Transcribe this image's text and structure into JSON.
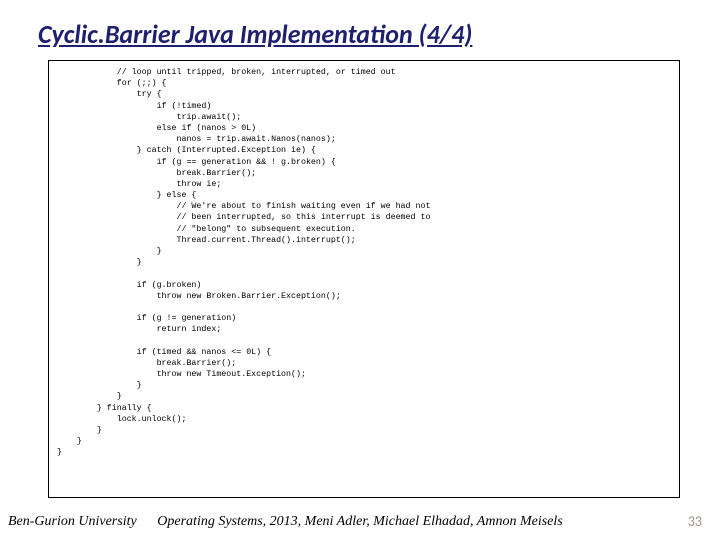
{
  "title": "Cyclic.Barrier Java Implementation (4/4)",
  "code": "            // loop until tripped, broken, interrupted, or timed out\n            for (;;) {\n                try {\n                    if (!timed)\n                        trip.await();\n                    else if (nanos > 0L)\n                        nanos = trip.await.Nanos(nanos);\n                } catch (Interrupted.Exception ie) {\n                    if (g == generation && ! g.broken) {\n                        break.Barrier();\n                        throw ie;\n                    } else {\n                        // We're about to finish waiting even if we had not\n                        // been interrupted, so this interrupt is deemed to\n                        // \"belong\" to subsequent execution.\n                        Thread.current.Thread().interrupt();\n                    }\n                }\n\n                if (g.broken)\n                    throw new Broken.Barrier.Exception();\n\n                if (g != generation)\n                    return index;\n\n                if (timed && nanos <= 0L) {\n                    break.Barrier();\n                    throw new Timeout.Exception();\n                }\n            }\n        } finally {\n            lock.unlock();\n        }\n    }\n}",
  "footer": {
    "left": "Ben-Gurion University",
    "center": "Operating Systems, 2013, Meni Adler, Michael Elhadad, Amnon Meisels",
    "pageNumber": "33"
  },
  "colors": {
    "titleColor": "#1f1f6f",
    "pageNumColor": "#a38f8f",
    "background": "#ffffff",
    "border": "#000000"
  }
}
